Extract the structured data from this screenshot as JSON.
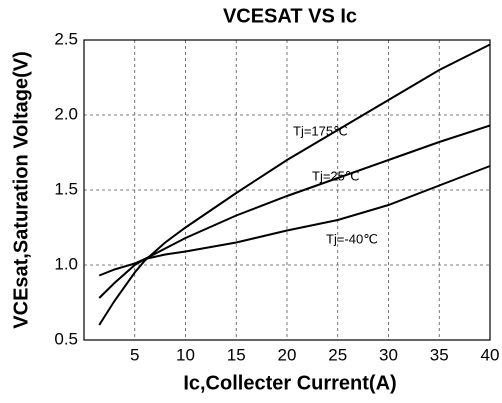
{
  "chart_data": {
    "type": "line",
    "title": "VCESAT VS Ic",
    "x_label": "Ic,Collecter Current(A)",
    "y_label": "VCEsat,Saturation Voltage(V)",
    "x": [
      1.5,
      3,
      5,
      6,
      8,
      10,
      15,
      20,
      25,
      30,
      35,
      40
    ],
    "series": [
      {
        "name": "Tj=175℃",
        "color": "#000000",
        "values": [
          0.6,
          0.76,
          0.95,
          1.03,
          1.15,
          1.25,
          1.48,
          1.7,
          1.9,
          2.1,
          2.3,
          2.47
        ]
      },
      {
        "name": "Tj=25℃",
        "color": "#000000",
        "values": [
          0.78,
          0.88,
          1.0,
          1.04,
          1.11,
          1.18,
          1.33,
          1.46,
          1.58,
          1.7,
          1.82,
          1.93
        ]
      },
      {
        "name": "Tj=-40℃",
        "color": "#000000",
        "values": [
          0.93,
          0.97,
          1.01,
          1.04,
          1.07,
          1.09,
          1.15,
          1.23,
          1.3,
          1.4,
          1.53,
          1.66
        ]
      }
    ],
    "xlim": [
      0,
      40
    ],
    "xticks": [
      5,
      10,
      15,
      20,
      25,
      30,
      35,
      40
    ],
    "ylim": [
      0.5,
      2.5
    ],
    "yticks": [
      0.5,
      {
        "value": 1,
        "label": "1.0"
      },
      1.5,
      {
        "value": 2,
        "label": "2.0"
      },
      2.5
    ],
    "grid": true
  }
}
